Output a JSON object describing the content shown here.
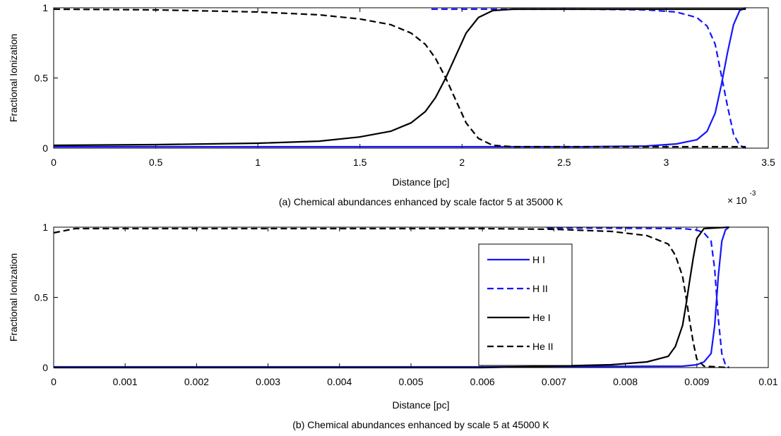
{
  "chart_data": [
    {
      "type": "line",
      "caption": "(a) Chemical abundances enhanced by scale factor 5 at 35000 K",
      "xlabel": "Distance [pc]",
      "ylabel": "Fractional Ionization",
      "xlim": [
        0,
        3.5
      ],
      "ylim": [
        0,
        1
      ],
      "xticks": [
        "0",
        "0.5",
        "1",
        "1.5",
        "2",
        "2.5",
        "3",
        "3.5"
      ],
      "xtick_values": [
        0,
        0.5,
        1,
        1.5,
        2,
        2.5,
        3,
        3.5
      ],
      "yticks": [
        "0",
        "0.5",
        "1"
      ],
      "ytick_values": [
        0,
        0.5,
        1
      ],
      "x_multiplier_base": "× 10",
      "x_multiplier_exp": "-3",
      "grid": false,
      "legend": false,
      "series": [
        {
          "key": "HI",
          "color": "#1515ff",
          "dash": "solid",
          "x": [
            0,
            1.0,
            2.0,
            2.6,
            2.9,
            3.05,
            3.15,
            3.2,
            3.24,
            3.27,
            3.3,
            3.33,
            3.36,
            3.39
          ],
          "y": [
            0.01,
            0.01,
            0.01,
            0.01,
            0.015,
            0.03,
            0.06,
            0.12,
            0.25,
            0.45,
            0.68,
            0.88,
            0.98,
            1.0
          ]
        },
        {
          "key": "HII",
          "color": "#1515ff",
          "dash": "dashed",
          "x": [
            1.85,
            2.6,
            2.9,
            3.05,
            3.15,
            3.2,
            3.24,
            3.27,
            3.3,
            3.33,
            3.36,
            3.39
          ],
          "y": [
            0.99,
            0.99,
            0.985,
            0.97,
            0.93,
            0.87,
            0.74,
            0.52,
            0.3,
            0.1,
            0.02,
            0.0
          ]
        },
        {
          "key": "HeI",
          "color": "#000000",
          "dash": "solid",
          "x": [
            0,
            0.5,
            1.0,
            1.3,
            1.5,
            1.65,
            1.75,
            1.82,
            1.87,
            1.92,
            1.97,
            2.02,
            2.08,
            2.15,
            2.25,
            2.6,
            3.0,
            3.39
          ],
          "y": [
            0.02,
            0.025,
            0.035,
            0.05,
            0.08,
            0.12,
            0.18,
            0.26,
            0.36,
            0.5,
            0.66,
            0.82,
            0.93,
            0.98,
            0.99,
            0.99,
            0.99,
            0.99
          ]
        },
        {
          "key": "HeII",
          "color": "#000000",
          "dash": "dashed",
          "x": [
            0,
            0.5,
            1.0,
            1.3,
            1.5,
            1.65,
            1.75,
            1.82,
            1.87,
            1.92,
            1.97,
            2.02,
            2.08,
            2.15,
            2.25,
            2.6,
            3.0,
            3.39
          ],
          "y": [
            0.99,
            0.985,
            0.97,
            0.95,
            0.92,
            0.88,
            0.82,
            0.74,
            0.64,
            0.5,
            0.34,
            0.18,
            0.07,
            0.02,
            0.01,
            0.01,
            0.01,
            0.01
          ]
        }
      ]
    },
    {
      "type": "line",
      "caption": "(b) Chemical abundances enhanced by scale 5 at 45000 K",
      "xlabel": "Distance [pc]",
      "ylabel": "Fractional Ionization",
      "xlim": [
        0,
        0.01
      ],
      "ylim": [
        0,
        1
      ],
      "xticks": [
        "0",
        "0.001",
        "0.002",
        "0.003",
        "0.004",
        "0.005",
        "0.006",
        "0.007",
        "0.008",
        "0.009",
        "0.01"
      ],
      "xtick_values": [
        0,
        0.001,
        0.002,
        0.003,
        0.004,
        0.005,
        0.006,
        0.007,
        0.008,
        0.009,
        0.01
      ],
      "yticks": [
        "0",
        "0.5",
        "1"
      ],
      "ytick_values": [
        0,
        0.5,
        1
      ],
      "grid": false,
      "legend": true,
      "legend_position": "upper-right-inside",
      "series": [
        {
          "key": "HI",
          "name": "H I",
          "color": "#1515ff",
          "dash": "solid",
          "x": [
            0,
            0.006,
            0.0088,
            0.009,
            0.0091,
            0.0092,
            0.00925,
            0.0093,
            0.00935,
            0.0094,
            0.00945
          ],
          "y": [
            0.005,
            0.005,
            0.01,
            0.02,
            0.04,
            0.1,
            0.3,
            0.65,
            0.9,
            0.98,
            1.0
          ]
        },
        {
          "key": "HII",
          "name": "H II",
          "color": "#1515ff",
          "dash": "dashed",
          "x": [
            0.0069,
            0.0088,
            0.009,
            0.0091,
            0.0092,
            0.00925,
            0.0093,
            0.00935,
            0.0094,
            0.00945
          ],
          "y": [
            0.995,
            0.99,
            0.98,
            0.96,
            0.9,
            0.7,
            0.35,
            0.1,
            0.02,
            0.0
          ]
        },
        {
          "key": "HeI",
          "name": "He I",
          "color": "#000000",
          "dash": "solid",
          "x": [
            0,
            0.006,
            0.007,
            0.0078,
            0.0083,
            0.0086,
            0.0087,
            0.0088,
            0.00885,
            0.0089,
            0.00895,
            0.009,
            0.0091,
            0.00945
          ],
          "y": [
            0.0,
            0.0,
            0.01,
            0.02,
            0.04,
            0.08,
            0.15,
            0.3,
            0.45,
            0.62,
            0.78,
            0.92,
            0.99,
            1.0
          ]
        },
        {
          "key": "HeII",
          "name": "He II",
          "color": "#000000",
          "dash": "dashed",
          "x": [
            0,
            0.0003,
            0.001,
            0.006,
            0.007,
            0.0078,
            0.0083,
            0.0086,
            0.0087,
            0.0088,
            0.00885,
            0.0089,
            0.00895,
            0.009,
            0.0091,
            0.00945
          ],
          "y": [
            0.96,
            0.99,
            0.99,
            0.99,
            0.985,
            0.97,
            0.94,
            0.88,
            0.8,
            0.65,
            0.5,
            0.33,
            0.18,
            0.06,
            0.01,
            0.0
          ]
        }
      ]
    }
  ]
}
